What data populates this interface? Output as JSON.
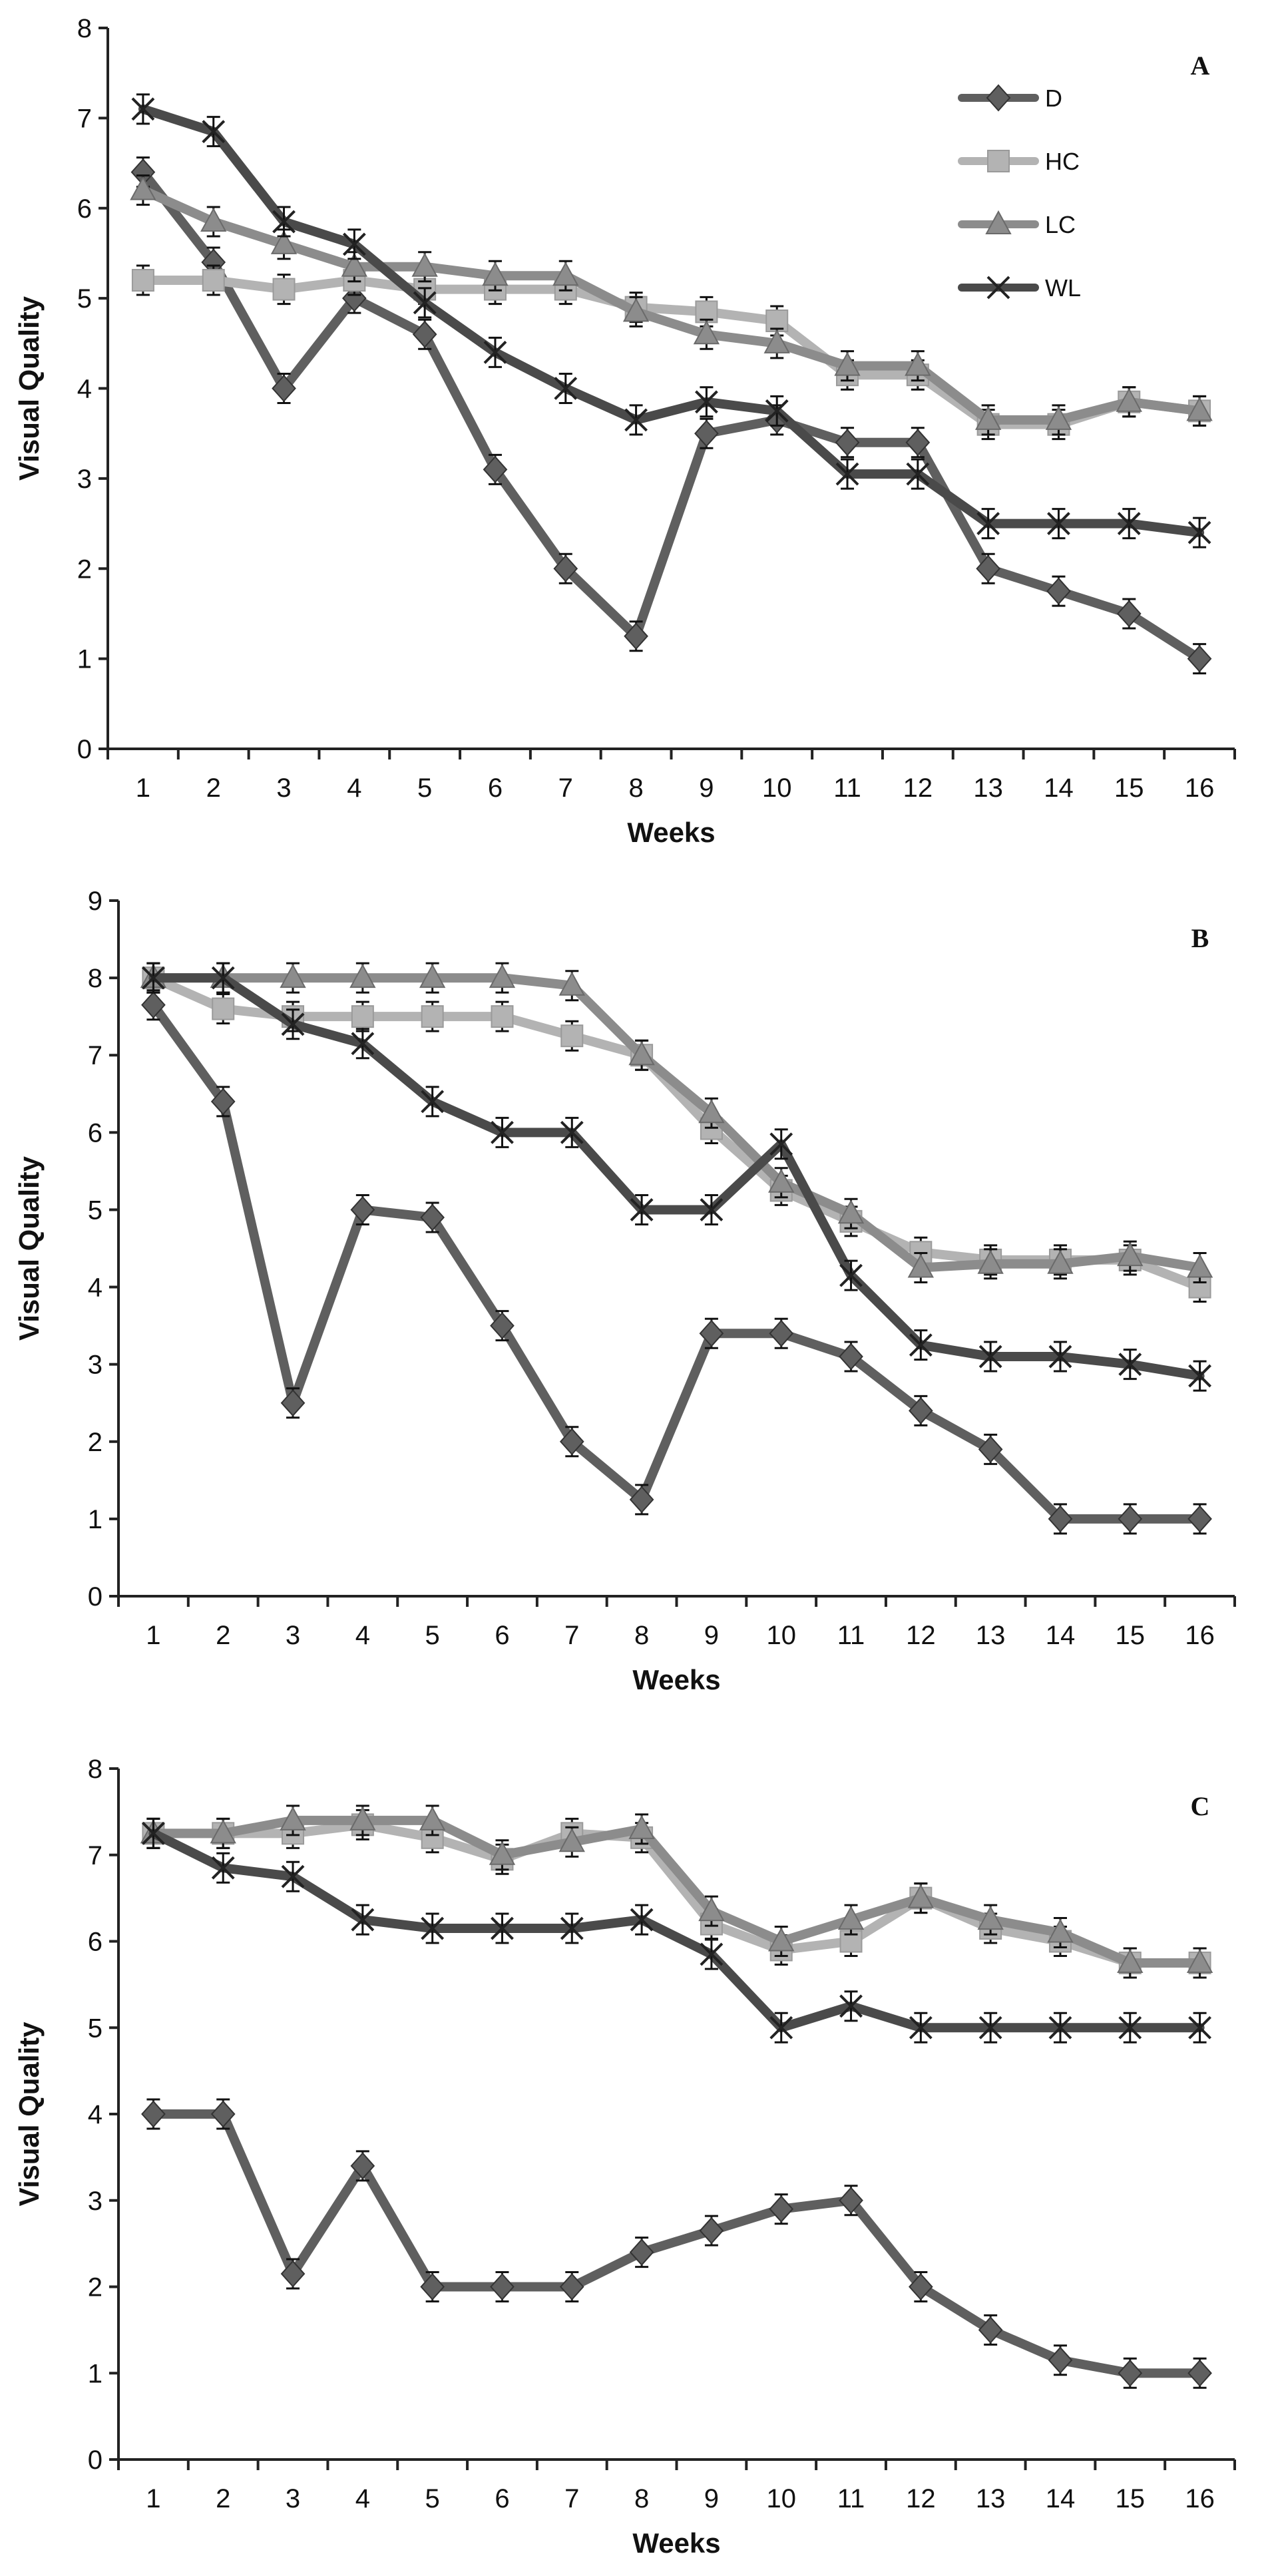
{
  "chart_data": [
    {
      "type": "line",
      "panel": "A",
      "title": "",
      "xlabel": "Weeks",
      "ylabel": "Visual Quality",
      "ylim": [
        0,
        8
      ],
      "yticks": [
        0,
        1,
        2,
        3,
        4,
        5,
        6,
        7,
        8
      ],
      "categories": [
        1,
        2,
        3,
        4,
        5,
        6,
        7,
        8,
        9,
        10,
        11,
        12,
        13,
        14,
        15,
        16
      ],
      "grid": false,
      "legend": {
        "placement": "top-right",
        "entries": [
          "D",
          "HC",
          "LC",
          "WL"
        ]
      },
      "series": [
        {
          "name": "D",
          "color": "#5f5f5f",
          "marker": "diamond",
          "values": [
            6.4,
            5.4,
            4.0,
            5.0,
            4.6,
            3.1,
            2.0,
            1.25,
            3.5,
            3.65,
            3.4,
            3.4,
            2.0,
            1.75,
            1.5,
            1.0
          ]
        },
        {
          "name": "HC",
          "color": "#b3b3b3",
          "marker": "square",
          "values": [
            5.2,
            5.2,
            5.1,
            5.2,
            5.1,
            5.1,
            5.1,
            4.9,
            4.85,
            4.75,
            4.15,
            4.15,
            3.6,
            3.6,
            3.85,
            3.75
          ]
        },
        {
          "name": "LC",
          "color": "#8c8c8c",
          "marker": "triangle",
          "values": [
            6.2,
            5.85,
            5.6,
            5.35,
            5.35,
            5.25,
            5.25,
            4.85,
            4.6,
            4.5,
            4.25,
            4.25,
            3.65,
            3.65,
            3.85,
            3.75
          ]
        },
        {
          "name": "WL",
          "color": "#4a4a4a",
          "marker": "x",
          "values": [
            7.1,
            6.85,
            5.85,
            5.6,
            4.95,
            4.4,
            4.0,
            3.65,
            3.85,
            3.75,
            3.05,
            3.05,
            2.5,
            2.5,
            2.5,
            2.4
          ]
        }
      ]
    },
    {
      "type": "line",
      "panel": "B",
      "title": "",
      "xlabel": "Weeks",
      "ylabel": "Visual Quality",
      "ylim": [
        0,
        9
      ],
      "yticks": [
        0,
        1,
        2,
        3,
        4,
        5,
        6,
        7,
        8,
        9
      ],
      "categories": [
        1,
        2,
        3,
        4,
        5,
        6,
        7,
        8,
        9,
        10,
        11,
        12,
        13,
        14,
        15,
        16
      ],
      "grid": false,
      "series": [
        {
          "name": "D",
          "color": "#5f5f5f",
          "marker": "diamond",
          "values": [
            7.65,
            6.4,
            2.5,
            5.0,
            4.9,
            3.5,
            2.0,
            1.25,
            3.4,
            3.4,
            3.1,
            2.4,
            1.9,
            1.0,
            1.0,
            1.0
          ]
        },
        {
          "name": "HC",
          "color": "#b3b3b3",
          "marker": "square",
          "values": [
            8.0,
            7.6,
            7.5,
            7.5,
            7.5,
            7.5,
            7.25,
            7.0,
            6.05,
            5.25,
            4.85,
            4.45,
            4.35,
            4.35,
            4.35,
            4.0
          ]
        },
        {
          "name": "LC",
          "color": "#8c8c8c",
          "marker": "triangle",
          "values": [
            8.0,
            8.0,
            8.0,
            8.0,
            8.0,
            8.0,
            7.9,
            7.0,
            6.25,
            5.35,
            4.95,
            4.25,
            4.3,
            4.3,
            4.4,
            4.25
          ]
        },
        {
          "name": "WL",
          "color": "#4a4a4a",
          "marker": "x",
          "values": [
            8.0,
            8.0,
            7.4,
            7.15,
            6.4,
            6.0,
            6.0,
            5.0,
            5.0,
            5.85,
            4.15,
            3.25,
            3.1,
            3.1,
            3.0,
            2.85
          ]
        }
      ]
    },
    {
      "type": "line",
      "panel": "C",
      "title": "",
      "xlabel": "Weeks",
      "ylabel": "Visual Quality",
      "ylim": [
        0,
        8
      ],
      "yticks": [
        0,
        1,
        2,
        3,
        4,
        5,
        6,
        7,
        8
      ],
      "categories": [
        1,
        2,
        3,
        4,
        5,
        6,
        7,
        8,
        9,
        10,
        11,
        12,
        13,
        14,
        15,
        16
      ],
      "grid": false,
      "series": [
        {
          "name": "D",
          "color": "#5f5f5f",
          "marker": "diamond",
          "values": [
            4.0,
            4.0,
            2.15,
            3.4,
            2.0,
            2.0,
            2.0,
            2.4,
            2.65,
            2.9,
            3.0,
            2.0,
            1.5,
            1.15,
            1.0,
            1.0
          ]
        },
        {
          "name": "HC",
          "color": "#b3b3b3",
          "marker": "square",
          "values": [
            7.25,
            7.25,
            7.25,
            7.35,
            7.2,
            6.95,
            7.25,
            7.2,
            6.2,
            5.9,
            6.0,
            6.5,
            6.15,
            6.0,
            5.75,
            5.75
          ]
        },
        {
          "name": "LC",
          "color": "#8c8c8c",
          "marker": "triangle",
          "values": [
            7.25,
            7.25,
            7.4,
            7.4,
            7.4,
            7.0,
            7.15,
            7.3,
            6.35,
            6.0,
            6.25,
            6.5,
            6.25,
            6.1,
            5.75,
            5.75
          ]
        },
        {
          "name": "WL",
          "color": "#4a4a4a",
          "marker": "x",
          "values": [
            7.25,
            6.85,
            6.75,
            6.25,
            6.15,
            6.15,
            6.15,
            6.25,
            5.85,
            5.0,
            5.25,
            5.0,
            5.0,
            5.0,
            5.0,
            5.0
          ]
        }
      ]
    }
  ]
}
